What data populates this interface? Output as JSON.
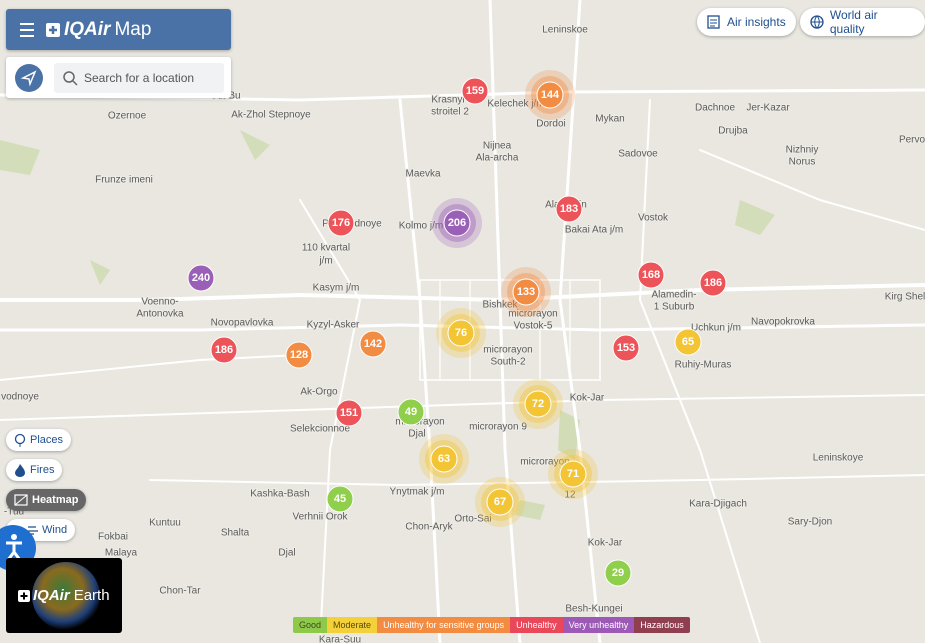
{
  "header": {
    "logo": "IQAir",
    "title": "Map"
  },
  "search": {
    "placeholder": "Search for a location"
  },
  "top_buttons": [
    "Air insights",
    "World air quality"
  ],
  "layers": [
    "Places",
    "Fires",
    "Heatmap",
    "Wind"
  ],
  "earth": {
    "logo": "IQAir",
    "title": "Earth"
  },
  "places": [
    "Leninskoe",
    "Krasnyi",
    "stroitel 2",
    "Kelechek j/m",
    "Dordoi",
    "Mykan",
    "Dachnoe",
    "Jer-Kazar",
    "Drujba",
    "Nizhniy",
    "Norus",
    "Pervo",
    "Ozernoe",
    "Ak-Zhol Stepnoye",
    "Nijnea",
    "Ala-archa",
    "Sadovoe",
    "Frunze imeni",
    "Maevka",
    "Alamedin",
    "Vostok",
    "Bakai Ata j/m",
    "Kolmo j/m",
    "Prigorodnoye",
    "110 kvartal",
    "j/m",
    "Kasym j/m",
    "Bishkek",
    "Alamedin-",
    "1 Suburb",
    "Kirg Shel",
    "Voenno-",
    "Antonovka",
    "Novopavlovka",
    "Kyzyl-Asker",
    "microrayon",
    "Vostok-5",
    "Uchkun j/m",
    "Navopokrovka",
    "Ruhiy-Muras",
    "microrayon",
    "South-2",
    "Ak-Orgo",
    "Kok-Jar",
    "vodnoye",
    "Selekcionnoe",
    "microrayon",
    "Djal",
    "microrayon 9",
    "microrayon",
    "12",
    "Leninskoye",
    "Ynytmak j/m",
    "Kashka-Bash",
    "Verhnii Orok",
    "Orto-Sai",
    "Chon-Aryk",
    "Kara-Djigach",
    "Sary-Djon",
    "Kuntuu",
    "Shalta",
    "Kok-Jar",
    "Djal",
    "Malaya",
    "Fokbai",
    "-Tuu",
    "Besh-Kungei",
    "Chon-Tar",
    "Kara-Suu",
    "Ak-Bu"
  ],
  "stations": [
    {
      "aqi": 159,
      "color": "#ec5459"
    },
    {
      "aqi": 144,
      "color": "#f28c43"
    },
    {
      "aqi": 176,
      "color": "#ec5459"
    },
    {
      "aqi": 206,
      "color": "#9a5fb6"
    },
    {
      "aqi": 183,
      "color": "#ec5459"
    },
    {
      "aqi": 240,
      "color": "#9a5fb6"
    },
    {
      "aqi": 168,
      "color": "#ec5459"
    },
    {
      "aqi": 186,
      "color": "#ec5459"
    },
    {
      "aqi": 133,
      "color": "#f28c43"
    },
    {
      "aqi": 76,
      "color": "#f3c434"
    },
    {
      "aqi": 186,
      "color": "#ec5459"
    },
    {
      "aqi": 128,
      "color": "#f28c43"
    },
    {
      "aqi": 142,
      "color": "#f28c43"
    },
    {
      "aqi": 153,
      "color": "#ec5459"
    },
    {
      "aqi": 65,
      "color": "#f3c434"
    },
    {
      "aqi": 151,
      "color": "#ec5459"
    },
    {
      "aqi": 49,
      "color": "#8fcf4c"
    },
    {
      "aqi": 72,
      "color": "#f3c434"
    },
    {
      "aqi": 63,
      "color": "#f3c434"
    },
    {
      "aqi": 71,
      "color": "#f3c434"
    },
    {
      "aqi": 45,
      "color": "#8fcf4c"
    },
    {
      "aqi": 67,
      "color": "#f3c434"
    },
    {
      "aqi": 29,
      "color": "#8fcf4c"
    }
  ],
  "legend": [
    {
      "label": "Good",
      "color": "#8fc94a",
      "text_color": "#3b4a1f"
    },
    {
      "label": "Moderate",
      "color": "#f4d03a",
      "text_color": "#5a4a00"
    },
    {
      "label": "Unhealthy for sensitive groups",
      "color": "#f28c43",
      "text_color": "#ffffff"
    },
    {
      "label": "Unhealthy",
      "color": "#e9475a",
      "text_color": "#ffffff"
    },
    {
      "label": "Very unhealthy",
      "color": "#9c59b6",
      "text_color": "#ffffff"
    },
    {
      "label": "Hazardous",
      "color": "#8f3f50",
      "text_color": "#ffffff"
    }
  ]
}
